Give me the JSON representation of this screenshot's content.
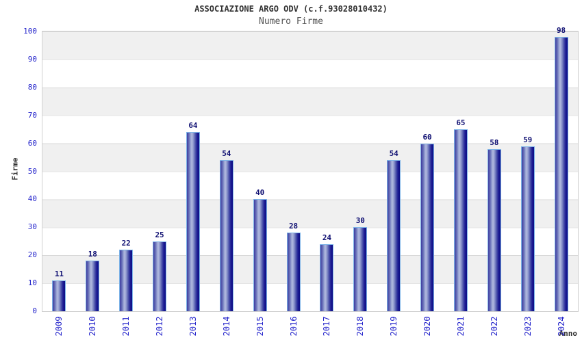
{
  "header": {
    "title": "ASSOCIAZIONE ARGO ODV (c.f.93028010432)",
    "subtitle": "Numero Firme"
  },
  "chart_data": {
    "type": "bar",
    "title": "ASSOCIAZIONE ARGO ODV (c.f.93028010432)",
    "subtitle": "Numero Firme",
    "xlabel": "Anno",
    "ylabel": "Firme",
    "categories": [
      "2009",
      "2010",
      "2011",
      "2012",
      "2013",
      "2014",
      "2015",
      "2016",
      "2017",
      "2018",
      "2019",
      "2020",
      "2021",
      "2022",
      "2023",
      "2024"
    ],
    "values": [
      11,
      18,
      22,
      25,
      64,
      54,
      40,
      28,
      24,
      30,
      54,
      60,
      65,
      58,
      59,
      98
    ],
    "ylim": [
      0,
      100
    ],
    "ytick_step": 10,
    "yticks": [
      0,
      10,
      20,
      30,
      40,
      50,
      60,
      70,
      80,
      90,
      100
    ],
    "grid": "horizontal alternating bands every 10 units",
    "legend": "none",
    "colors": {
      "bar_dark": "#0c0c84",
      "bar_highlight": "#b0b9de",
      "bar_border": "#7db4e8",
      "value_label": "#0f0f72",
      "tick_label": "#2323cb",
      "band_gray": "#f0f0f0",
      "band_white": "#ffffff",
      "plot_border": "#cfcfcf",
      "title": "#333333",
      "subtitle": "#555555"
    }
  }
}
